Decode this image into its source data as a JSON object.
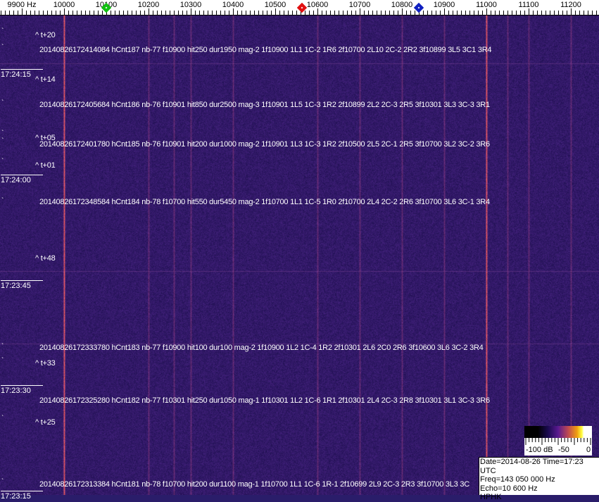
{
  "frequency_axis": {
    "unit_label": "9900 Hz",
    "labels": [
      "10000",
      "10100",
      "10200",
      "10300",
      "10400",
      "10500",
      "10600",
      "10700",
      "10800",
      "10900",
      "11000",
      "11100",
      "11200"
    ],
    "markers": [
      {
        "name": "green-marker",
        "freq_hz": 10100,
        "color": "#10c010"
      },
      {
        "name": "red-marker",
        "freq_hz": 10563,
        "color": "#e01010"
      },
      {
        "name": "blue-marker",
        "freq_hz": 10840,
        "color": "#1020c0"
      }
    ]
  },
  "time_axis": {
    "labels": [
      "17:24:15",
      "17:24:00",
      "17:23:45",
      "17:23:30",
      "17:23:15"
    ]
  },
  "waterfall": {
    "background_color": "#2a1d6a",
    "strong_carriers_hz": [
      10000,
      11000
    ],
    "weak_carriers_hz": [
      10200,
      10260,
      10300,
      10400,
      10600,
      10700,
      10800,
      10900,
      11050,
      11100,
      11200
    ]
  },
  "offsets": [
    "^ t+20",
    "^ t+14",
    "^ t+05",
    "^ t+01",
    "^ t+48",
    "^ t+33",
    "^ t+25"
  ],
  "detections": [
    "20140826172414084 hCnt187 nb-77 f10900 hit250 dur1950 mag-2 1f10900 1L1 1C-2 1R6 2f10700 2L10 2C-2 2R2 3f10899 3L5 3C1 3R4",
    "20140826172405684 hCnt186 nb-76 f10901 hit850 dur2500 mag-3 1f10901 1L5 1C-3 1R2 2f10899 2L2 2C-3 2R5 3f10301 3L3 3C-3 3R1",
    "20140826172401780 hCnt185 nb-76 f10901 hit200 dur1000 mag-2 1f10901 1L3 1C-3 1R2 2f10500 2L5 2C-1 2R5 3f10700 3L2 3C-2 3R6",
    "20140826172348584 hCnt184 nb-78 f10700 hit550 dur5450 mag-2 1f10700 1L1 1C-5 1R0 2f10700 2L4 2C-2 2R6 3f10700 3L6 3C-1 3R4",
    "20140826172333780 hCnt183 nb-77 f10900 hit100 dur100 mag-2 1f10900 1L2 1C-4 1R2 2f10301 2L6 2C0 2R6 3f10600 3L6 3C-2 3R4",
    "20140826172325280 hCnt182 nb-77 f10301 hit250 dur1050 mag-1 1f10301 1L2 1C-6 1R1 2f10301 2L4 2C-3 2R8 3f10301 3L1 3C-3 3R6",
    "20140826172313384 hCnt181 nb-78 f10700 hit200 dur1100 mag-1 1f10700 1L1 1C-6 1R-1 2f10699 2L9 2C-3 2R3 3f10700 3L3 3C"
  ],
  "color_scale": {
    "labels": [
      "-100 dB",
      "-50",
      "0"
    ]
  },
  "info_box": {
    "line1": "Date=2014-08-26 Time=17:23 UTC",
    "line2": "Freq=143 050 000 Hz",
    "line3": "Echo=10 600 Hz",
    "line4": "HPHK"
  }
}
